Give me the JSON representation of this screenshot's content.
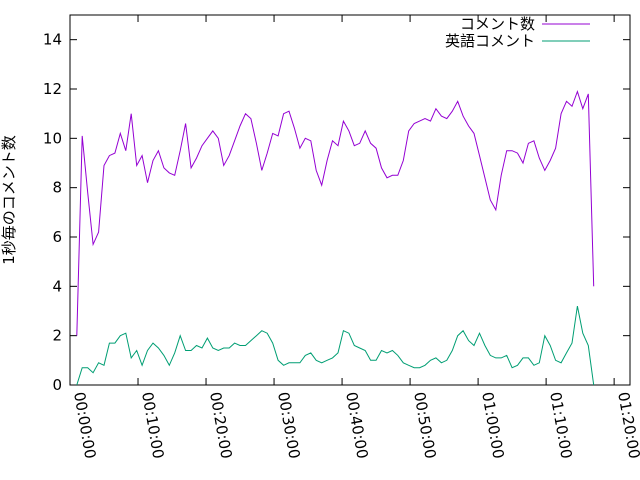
{
  "chart_data": {
    "type": "line",
    "y_label": "1秒毎のコメント数",
    "x": [
      60,
      108,
      156,
      204,
      252,
      300,
      348,
      396,
      444,
      492,
      540,
      588,
      636,
      684,
      732,
      780,
      828,
      876,
      924,
      972,
      1020,
      1068,
      1116,
      1164,
      1212,
      1260,
      1308,
      1356,
      1404,
      1452,
      1500,
      1548,
      1596,
      1644,
      1692,
      1740,
      1788,
      1836,
      1884,
      1932,
      1980,
      2028,
      2076,
      2124,
      2172,
      2220,
      2268,
      2316,
      2364,
      2412,
      2460,
      2508,
      2556,
      2604,
      2652,
      2700,
      2748,
      2796,
      2844,
      2892,
      2940,
      2988,
      3036,
      3084,
      3132,
      3180,
      3228,
      3276,
      3324,
      3372,
      3420,
      3468,
      3516,
      3564,
      3612,
      3660,
      3708,
      3756,
      3804,
      3852,
      3900,
      3948,
      3996,
      4044,
      4092,
      4140,
      4188,
      4236,
      4284,
      4332,
      4380,
      4428,
      4476,
      4524,
      4572,
      4620
    ],
    "series": [
      {
        "name": "コメント数",
        "color": "#9400d3",
        "values": [
          2.0,
          10.1,
          7.8,
          5.7,
          6.2,
          8.9,
          9.3,
          9.4,
          10.2,
          9.5,
          11.0,
          8.9,
          9.3,
          8.2,
          9.1,
          9.5,
          8.8,
          8.6,
          8.5,
          9.5,
          10.6,
          8.8,
          9.2,
          9.7,
          10.0,
          10.3,
          10.0,
          8.9,
          9.3,
          9.9,
          10.5,
          11.0,
          10.8,
          9.8,
          8.7,
          9.4,
          10.2,
          10.1,
          11.0,
          11.1,
          10.4,
          9.6,
          10.0,
          9.9,
          8.7,
          8.1,
          9.1,
          9.9,
          9.7,
          10.7,
          10.3,
          9.7,
          9.8,
          10.3,
          9.8,
          9.6,
          8.8,
          8.4,
          8.5,
          8.5,
          9.1,
          10.3,
          10.6,
          10.7,
          10.8,
          10.7,
          11.2,
          10.9,
          10.8,
          11.1,
          11.5,
          10.9,
          10.5,
          10.2,
          9.3,
          8.4,
          7.5,
          7.1,
          8.5,
          9.5,
          9.5,
          9.4,
          9.0,
          9.8,
          9.9,
          9.2,
          8.7,
          9.1,
          9.6,
          11.0,
          11.5,
          11.3,
          11.9,
          11.2,
          11.8,
          4.0
        ]
      },
      {
        "name": "英語コメント",
        "color": "#009e73",
        "values": [
          0,
          0.7,
          0.7,
          0.5,
          0.9,
          0.8,
          1.7,
          1.7,
          2.0,
          2.1,
          1.1,
          1.4,
          0.8,
          1.4,
          1.7,
          1.5,
          1.2,
          0.8,
          1.3,
          2.0,
          1.4,
          1.4,
          1.6,
          1.5,
          1.9,
          1.5,
          1.4,
          1.5,
          1.5,
          1.7,
          1.6,
          1.6,
          1.8,
          2.0,
          2.2,
          2.1,
          1.7,
          1.0,
          0.8,
          0.9,
          0.9,
          0.9,
          1.2,
          1.3,
          1.0,
          0.9,
          1.0,
          1.1,
          1.3,
          2.2,
          2.1,
          1.6,
          1.5,
          1.4,
          1.0,
          1.0,
          1.4,
          1.3,
          1.4,
          1.2,
          0.9,
          0.8,
          0.7,
          0.7,
          0.8,
          1.0,
          1.1,
          0.9,
          1.0,
          1.4,
          2.0,
          2.2,
          1.8,
          1.6,
          2.1,
          1.6,
          1.2,
          1.1,
          1.1,
          1.2,
          0.7,
          0.8,
          1.1,
          1.1,
          0.8,
          0.9,
          2.0,
          1.6,
          1.0,
          0.9,
          1.3,
          1.7,
          3.2,
          2.1,
          1.6,
          0
        ]
      }
    ],
    "xlim": [
      0,
      4940
    ],
    "xticks": [
      {
        "value": 0,
        "label": "00:00:00"
      },
      {
        "value": 600,
        "label": "00:10:00"
      },
      {
        "value": 1200,
        "label": "00:20:00"
      },
      {
        "value": 1800,
        "label": "00:30:00"
      },
      {
        "value": 2400,
        "label": "00:40:00"
      },
      {
        "value": 3000,
        "label": "00:50:00"
      },
      {
        "value": 3600,
        "label": "01:00:00"
      },
      {
        "value": 4200,
        "label": "01:10:00"
      },
      {
        "value": 4800,
        "label": "01:20:00"
      }
    ],
    "ylim": [
      0,
      15
    ],
    "yticks": [
      0,
      2,
      4,
      6,
      8,
      10,
      12,
      14
    ],
    "legend": "top-right"
  }
}
